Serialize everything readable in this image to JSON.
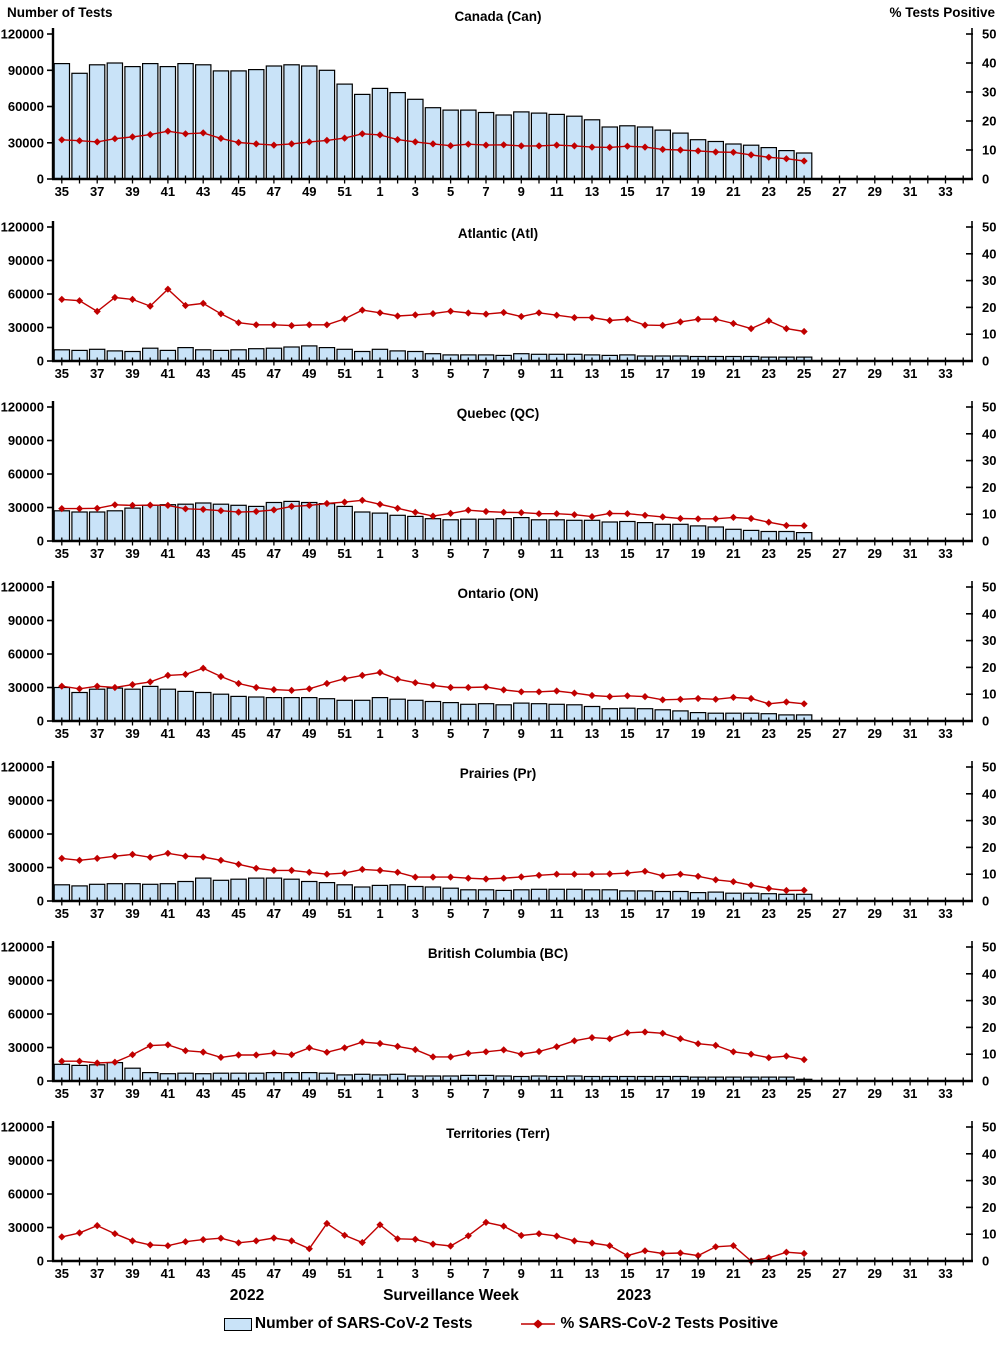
{
  "axes": {
    "left_label": "Number of Tests",
    "right_label": "% Tests Positive",
    "left_ticks": [
      0,
      30000,
      60000,
      90000,
      120000
    ],
    "left_ylim": [
      0,
      120000
    ],
    "right_ticks": [
      0,
      10,
      20,
      30,
      40,
      50
    ],
    "right_ylim": [
      0,
      50
    ],
    "x_tick_labels": [
      "35",
      "37",
      "39",
      "41",
      "43",
      "45",
      "47",
      "49",
      "51",
      "1",
      "3",
      "5",
      "7",
      "9",
      "11",
      "13",
      "15",
      "17",
      "19",
      "21",
      "23",
      "25",
      "27",
      "29",
      "31",
      "33"
    ],
    "weeks_with_data": [
      35,
      36,
      37,
      38,
      39,
      40,
      41,
      42,
      43,
      44,
      45,
      46,
      47,
      48,
      49,
      50,
      51,
      52,
      1,
      2,
      3,
      4,
      5,
      6,
      7,
      8,
      9,
      10,
      11,
      12,
      13,
      14,
      15,
      16,
      17,
      18,
      19,
      20,
      21,
      22,
      23,
      24,
      25
    ]
  },
  "footer": {
    "year_left": "2022",
    "axis_title": "Surveillance Week",
    "year_right": "2023"
  },
  "legend": {
    "bars_label": "Number of SARS-CoV-2 Tests",
    "line_label": "% SARS-CoV-2 Tests Positive"
  },
  "colors": {
    "bar_fill": "#C9E3F8",
    "bar_stroke": "#000000",
    "line": "#C00000"
  },
  "chart_data": [
    {
      "type": "bar",
      "title": "Canada (Can)",
      "tests": [
        95500,
        87500,
        94500,
        96000,
        93000,
        95500,
        93000,
        95500,
        94500,
        89500,
        89500,
        90500,
        93500,
        94500,
        93500,
        90000,
        78500,
        70000,
        75000,
        71500,
        66000,
        59000,
        57000,
        57000,
        55000,
        53000,
        55500,
        54500,
        53500,
        52000,
        49000,
        43000,
        44000,
        43000,
        40500,
        38000,
        32500,
        31000,
        29000,
        28000,
        26000,
        23500,
        21500
      ],
      "pct_positive": [
        13.5,
        13.2,
        12.8,
        13.9,
        14.5,
        15.3,
        16.5,
        15.6,
        15.9,
        14.0,
        12.6,
        12.1,
        11.7,
        12.1,
        12.8,
        13.3,
        14.1,
        15.6,
        15.2,
        13.6,
        12.8,
        12.1,
        11.5,
        12.0,
        11.7,
        11.8,
        11.4,
        11.4,
        11.7,
        11.4,
        11.0,
        10.9,
        11.3,
        11.0,
        10.2,
        10.0,
        9.7,
        9.3,
        9.2,
        8.3,
        7.5,
        7.0,
        6.2
      ]
    },
    {
      "type": "bar",
      "title": "Atlantic (Atl)",
      "tests": [
        10000,
        9500,
        10500,
        9000,
        8500,
        11500,
        9500,
        12000,
        10000,
        9500,
        10000,
        11000,
        11500,
        12500,
        13500,
        12000,
        10500,
        8500,
        10500,
        9000,
        8500,
        6500,
        5500,
        5500,
        5500,
        5000,
        6500,
        6000,
        6000,
        6000,
        5500,
        5000,
        5500,
        4500,
        4500,
        4500,
        4000,
        4000,
        4000,
        4000,
        3500,
        3500,
        3500
      ],
      "pct_positive": [
        23.0,
        22.5,
        18.5,
        23.7,
        23.0,
        20.5,
        26.8,
        20.7,
        21.5,
        17.6,
        14.3,
        13.5,
        13.5,
        13.2,
        13.5,
        13.5,
        15.7,
        19.0,
        18.0,
        16.8,
        17.2,
        17.7,
        18.6,
        17.9,
        17.5,
        18.1,
        16.6,
        18.0,
        17.1,
        16.2,
        16.2,
        15.1,
        15.6,
        13.4,
        13.3,
        14.6,
        15.6,
        15.6,
        14.0,
        12.1,
        15.0,
        12.1,
        11.0
      ]
    },
    {
      "type": "bar",
      "title": "Quebec (QC)",
      "tests": [
        27000,
        26000,
        26000,
        27000,
        29500,
        32000,
        32500,
        33000,
        34000,
        33000,
        32000,
        31000,
        34500,
        35500,
        34500,
        33500,
        31000,
        26000,
        25000,
        23000,
        22000,
        20000,
        19000,
        19500,
        19500,
        20000,
        21000,
        19000,
        19000,
        18500,
        18500,
        17000,
        17500,
        16500,
        15000,
        15000,
        13500,
        12500,
        10500,
        9500,
        8500,
        8500,
        7500
      ],
      "pct_positive": [
        12.1,
        12.1,
        12.2,
        13.5,
        13.3,
        13.4,
        13.3,
        12.0,
        11.8,
        11.3,
        10.8,
        11.0,
        11.6,
        12.9,
        13.3,
        14.0,
        14.5,
        15.2,
        13.7,
        12.2,
        10.7,
        9.3,
        10.3,
        11.5,
        11.0,
        10.7,
        10.6,
        10.2,
        10.2,
        9.8,
        9.1,
        10.3,
        10.2,
        9.6,
        9.0,
        8.4,
        8.3,
        8.3,
        8.8,
        8.4,
        7.0,
        5.8,
        5.7
      ]
    },
    {
      "type": "bar",
      "title": "Ontario (ON)",
      "tests": [
        30000,
        25500,
        28500,
        29500,
        28500,
        31000,
        28500,
        26500,
        25500,
        24000,
        22000,
        21500,
        21000,
        21000,
        21000,
        20000,
        18500,
        18500,
        21000,
        19500,
        18500,
        17500,
        16500,
        15000,
        15500,
        14500,
        16000,
        15500,
        15000,
        14500,
        13000,
        11000,
        11500,
        11000,
        10000,
        9000,
        7500,
        7000,
        7000,
        7000,
        6500,
        5500,
        5500
      ],
      "pct_positive": [
        13.0,
        12.0,
        13.0,
        12.5,
        13.6,
        14.6,
        17.0,
        17.4,
        19.7,
        16.6,
        14.0,
        12.5,
        11.7,
        11.4,
        12.0,
        14.0,
        15.8,
        17.0,
        18.1,
        15.6,
        14.3,
        13.3,
        12.5,
        12.5,
        12.7,
        11.6,
        10.9,
        10.9,
        11.2,
        10.4,
        9.5,
        9.1,
        9.4,
        9.1,
        7.9,
        8.1,
        8.4,
        8.1,
        8.8,
        8.4,
        6.4,
        7.1,
        6.4
      ]
    },
    {
      "type": "bar",
      "title": "Prairies (Pr)",
      "tests": [
        14500,
        13500,
        15000,
        15500,
        15500,
        15000,
        15500,
        17500,
        20500,
        18500,
        19500,
        20500,
        20500,
        19500,
        17500,
        16500,
        14500,
        12500,
        14000,
        14500,
        13000,
        12500,
        11500,
        10000,
        10000,
        9500,
        10000,
        10500,
        10500,
        10500,
        10000,
        10000,
        9000,
        9000,
        8500,
        8500,
        7500,
        8000,
        7000,
        7000,
        6500,
        6000,
        6000
      ],
      "pct_positive": [
        15.9,
        15.2,
        15.9,
        16.7,
        17.4,
        16.3,
        17.8,
        16.7,
        16.4,
        15.2,
        13.7,
        12.2,
        11.4,
        11.4,
        10.7,
        10.0,
        10.4,
        11.8,
        11.4,
        10.7,
        8.9,
        8.9,
        8.9,
        8.5,
        8.2,
        8.5,
        9.0,
        9.6,
        10.0,
        10.0,
        10.0,
        10.1,
        10.4,
        11.1,
        9.4,
        10.0,
        9.2,
        7.9,
        7.2,
        5.9,
        4.7,
        3.9,
        4.0
      ]
    },
    {
      "type": "bar",
      "title": "British Columbia (BC)",
      "tests": [
        15000,
        14000,
        14500,
        16500,
        11500,
        7500,
        6500,
        7000,
        6500,
        7000,
        7000,
        7000,
        7500,
        7500,
        7500,
        7000,
        5500,
        6000,
        5500,
        6000,
        4500,
        4500,
        4500,
        5000,
        5000,
        4500,
        4000,
        4500,
        4000,
        4500,
        4000,
        4000,
        4000,
        4000,
        4000,
        4000,
        3500,
        3500,
        3500,
        3500,
        3500,
        3500,
        1500
      ],
      "pct_positive": [
        7.4,
        7.4,
        6.7,
        7.0,
        9.8,
        13.2,
        13.5,
        11.3,
        10.8,
        8.8,
        9.7,
        9.7,
        10.4,
        9.8,
        12.4,
        10.7,
        12.4,
        14.5,
        14.0,
        12.9,
        11.7,
        9.0,
        9.0,
        10.3,
        10.9,
        11.6,
        10.0,
        11.0,
        12.8,
        15.0,
        16.2,
        15.8,
        18.0,
        18.3,
        17.8,
        15.8,
        13.9,
        13.3,
        10.9,
        10.0,
        8.7,
        9.3,
        8.0
      ]
    },
    {
      "type": "bar",
      "title": "Territories (Terr)",
      "tests": [
        0,
        0,
        0,
        0,
        0,
        0,
        0,
        0,
        0,
        0,
        0,
        0,
        0,
        0,
        0,
        0,
        0,
        0,
        0,
        0,
        0,
        0,
        0,
        0,
        0,
        0,
        0,
        0,
        0,
        0,
        0,
        0,
        0,
        0,
        0,
        0,
        0,
        0,
        0,
        0,
        0,
        0,
        0
      ],
      "pct_positive": [
        9.0,
        10.5,
        13.2,
        10.2,
        7.5,
        6.0,
        5.7,
        7.2,
        8.0,
        8.5,
        6.8,
        7.5,
        8.6,
        7.5,
        4.6,
        14.0,
        9.6,
        6.9,
        13.5,
        8.3,
        8.1,
        6.3,
        5.6,
        9.4,
        14.4,
        13.0,
        9.5,
        10.2,
        9.3,
        7.5,
        6.7,
        5.7,
        2.0,
        3.8,
        2.8,
        3.0,
        2.0,
        5.3,
        5.7,
        0.0,
        1.2,
        3.3,
        2.8
      ]
    }
  ]
}
